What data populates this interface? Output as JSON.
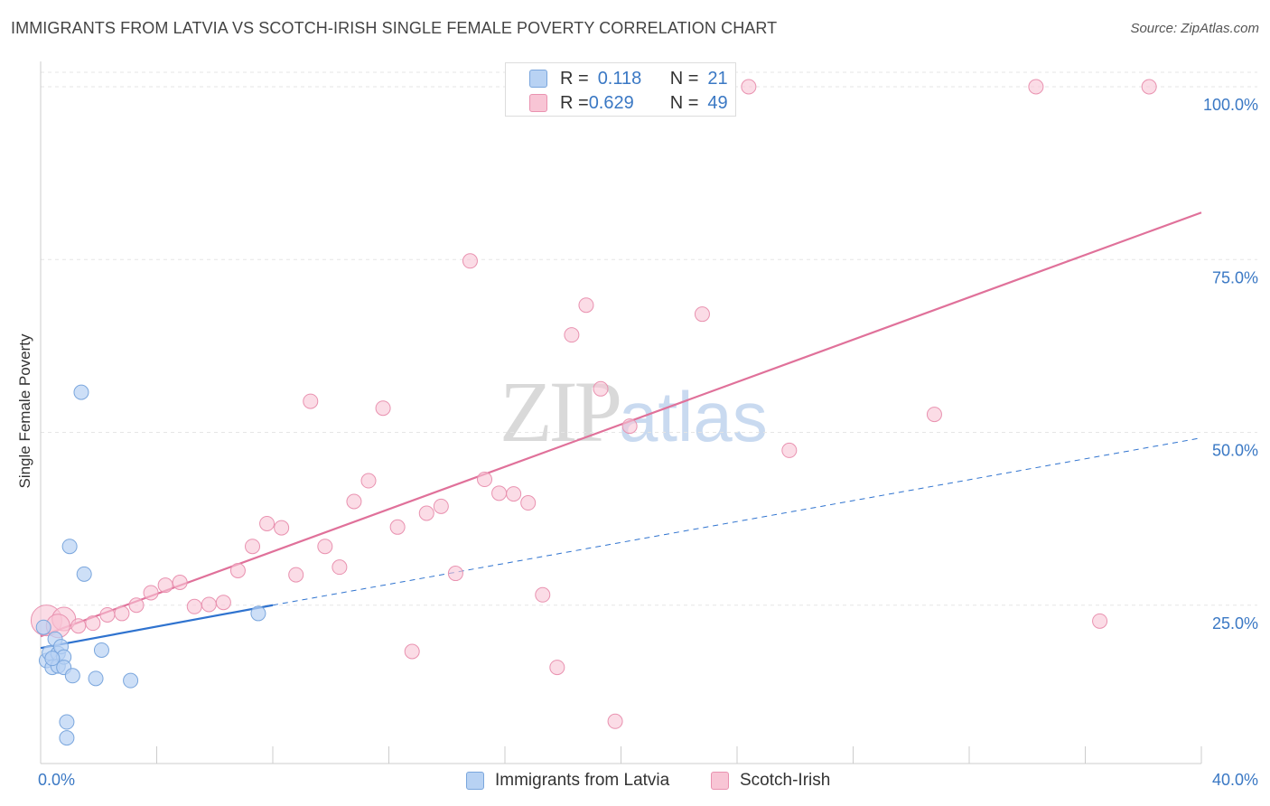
{
  "title": "IMMIGRANTS FROM LATVIA VS SCOTCH-IRISH SINGLE FEMALE POVERTY CORRELATION CHART",
  "source": "Source: ZipAtlas.com",
  "watermark": {
    "main": "ZIP",
    "sub": "atlas"
  },
  "legend": {
    "rows": [
      {
        "r_label": "R = ",
        "r_value": "0.118",
        "n_label": "N = ",
        "n_value": "21"
      },
      {
        "r_label": "R = ",
        "r_value": "0.629",
        "n_label": "N = ",
        "n_value": "49"
      }
    ]
  },
  "bottom_legend": [
    "Immigrants from Latvia",
    "Scotch-Irish"
  ],
  "chart_data": {
    "type": "scatter",
    "title": "IMMIGRANTS FROM LATVIA VS SCOTCH-IRISH SINGLE FEMALE POVERTY CORRELATION CHART",
    "xlabel": "",
    "ylabel": "Single Female Poverty",
    "xlim": [
      0,
      40
    ],
    "ylim": [
      0,
      100
    ],
    "x_tick_labels": [
      "0.0%",
      "40.0%"
    ],
    "y_ticks": [
      25,
      50,
      75,
      100
    ],
    "y_tick_labels": [
      "25.0%",
      "50.0%",
      "75.0%",
      "100.0%"
    ],
    "colors": {
      "latvia_fill": "#b8d2f3",
      "latvia_stroke": "#7aa6dd",
      "latvia_line": "#2f73cf",
      "scotch_fill": "#f8c5d5",
      "scotch_stroke": "#e992b0",
      "scotch_line": "#e0719a",
      "axis_label": "#3a78c4",
      "grid": "#e6e6e6"
    },
    "series": [
      {
        "name": "Immigrants from Latvia",
        "r": 0.118,
        "n": 21,
        "trend_solid": [
          [
            0.0,
            18.8
          ],
          [
            8.0,
            25.0
          ]
        ],
        "trend_dashed": [
          [
            8.0,
            25.0
          ],
          [
            40.0,
            49.2
          ]
        ],
        "points": [
          [
            0.1,
            21.8
          ],
          [
            0.2,
            17.0
          ],
          [
            0.3,
            18.1
          ],
          [
            0.4,
            16.0
          ],
          [
            0.5,
            20.1
          ],
          [
            0.6,
            18.0
          ],
          [
            0.6,
            16.2
          ],
          [
            0.7,
            19.0
          ],
          [
            0.8,
            17.5
          ],
          [
            0.8,
            16.0
          ],
          [
            0.9,
            8.1
          ],
          [
            0.9,
            5.8
          ],
          [
            1.0,
            33.5
          ],
          [
            1.1,
            14.8
          ],
          [
            1.4,
            55.8
          ],
          [
            1.5,
            29.5
          ],
          [
            1.9,
            14.4
          ],
          [
            2.1,
            18.5
          ],
          [
            3.1,
            14.1
          ],
          [
            7.5,
            23.8
          ],
          [
            0.4,
            17.3
          ]
        ]
      },
      {
        "name": "Scotch-Irish",
        "r": 0.629,
        "n": 49,
        "trend_solid": [
          [
            0.0,
            20.5
          ],
          [
            40.0,
            81.8
          ]
        ],
        "points": [
          [
            0.2,
            22.8
          ],
          [
            0.8,
            23.0
          ],
          [
            1.3,
            22.0
          ],
          [
            1.8,
            22.4
          ],
          [
            2.3,
            23.6
          ],
          [
            2.8,
            23.8
          ],
          [
            3.3,
            25.0
          ],
          [
            3.8,
            26.8
          ],
          [
            4.3,
            27.9
          ],
          [
            4.8,
            28.3
          ],
          [
            5.3,
            24.8
          ],
          [
            5.8,
            25.1
          ],
          [
            6.3,
            25.4
          ],
          [
            6.8,
            30.0
          ],
          [
            7.3,
            33.5
          ],
          [
            7.8,
            36.8
          ],
          [
            8.3,
            36.2
          ],
          [
            8.8,
            29.4
          ],
          [
            9.3,
            54.5
          ],
          [
            9.8,
            33.5
          ],
          [
            10.3,
            30.5
          ],
          [
            10.8,
            40.0
          ],
          [
            11.3,
            43.0
          ],
          [
            11.8,
            53.5
          ],
          [
            12.3,
            36.3
          ],
          [
            12.8,
            18.3
          ],
          [
            13.3,
            38.3
          ],
          [
            13.8,
            39.3
          ],
          [
            14.3,
            29.6
          ],
          [
            14.8,
            74.8
          ],
          [
            15.3,
            43.2
          ],
          [
            15.8,
            41.2
          ],
          [
            16.3,
            41.1
          ],
          [
            16.8,
            39.8
          ],
          [
            17.3,
            26.5
          ],
          [
            17.8,
            16.0
          ],
          [
            18.3,
            64.1
          ],
          [
            18.8,
            68.4
          ],
          [
            19.3,
            56.3
          ],
          [
            19.8,
            8.2
          ],
          [
            20.3,
            50.9
          ],
          [
            22.8,
            67.1
          ],
          [
            24.4,
            100.0
          ],
          [
            25.8,
            47.4
          ],
          [
            30.8,
            52.6
          ],
          [
            34.3,
            100.0
          ],
          [
            36.5,
            22.7
          ],
          [
            38.2,
            100.0
          ],
          [
            0.6,
            22.0
          ]
        ]
      }
    ]
  }
}
